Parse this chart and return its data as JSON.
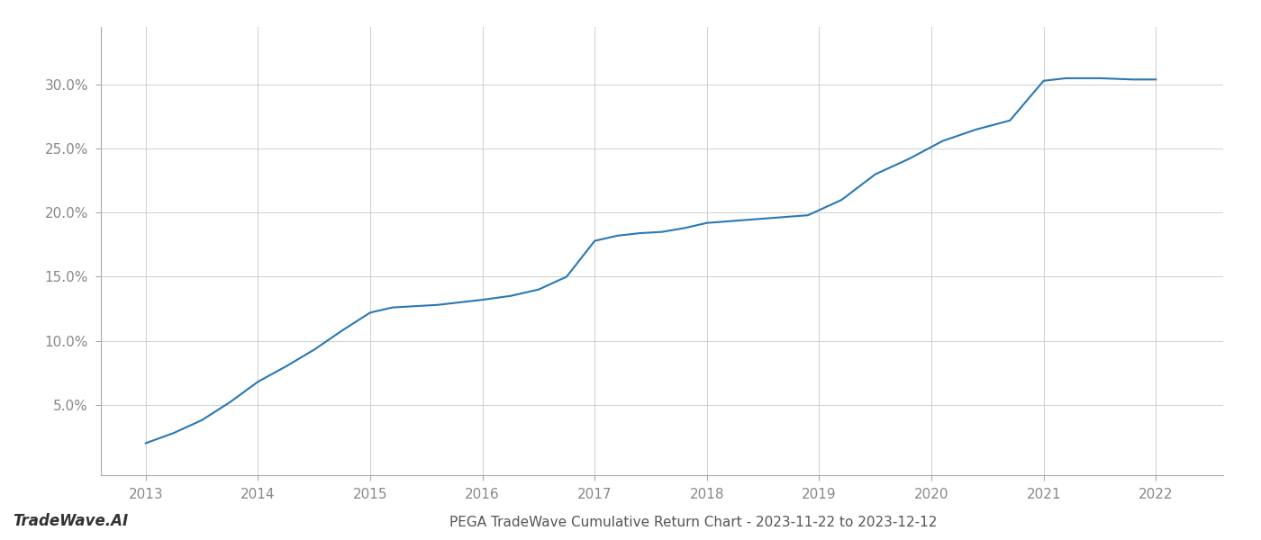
{
  "title": "PEGA TradeWave Cumulative Return Chart - 2023-11-22 to 2023-12-12",
  "watermark": "TradeWave.AI",
  "line_color": "#2878b5",
  "background_color": "#ffffff",
  "grid_color": "#d0d0d0",
  "x_values": [
    2013.0,
    2013.25,
    2013.5,
    2013.75,
    2014.0,
    2014.25,
    2014.5,
    2014.75,
    2015.0,
    2015.2,
    2015.4,
    2015.6,
    2015.8,
    2016.0,
    2016.25,
    2016.5,
    2016.75,
    2017.0,
    2017.2,
    2017.4,
    2017.6,
    2017.8,
    2018.0,
    2018.3,
    2018.6,
    2018.9,
    2019.2,
    2019.5,
    2019.8,
    2020.1,
    2020.4,
    2020.7,
    2021.0,
    2021.2,
    2021.5,
    2021.8,
    2022.0
  ],
  "y_values": [
    0.02,
    0.028,
    0.038,
    0.052,
    0.068,
    0.08,
    0.093,
    0.108,
    0.122,
    0.126,
    0.127,
    0.128,
    0.13,
    0.132,
    0.135,
    0.14,
    0.15,
    0.178,
    0.182,
    0.184,
    0.185,
    0.188,
    0.192,
    0.194,
    0.196,
    0.198,
    0.21,
    0.23,
    0.242,
    0.256,
    0.265,
    0.272,
    0.303,
    0.305,
    0.305,
    0.304,
    0.304
  ],
  "xlim": [
    2012.6,
    2022.6
  ],
  "ylim": [
    -0.005,
    0.345
  ],
  "yticks": [
    0.05,
    0.1,
    0.15,
    0.2,
    0.25,
    0.3
  ],
  "ytick_labels": [
    "5.0%",
    "10.0%",
    "15.0%",
    "20.0%",
    "25.0%",
    "30.0%"
  ],
  "xticks": [
    2013,
    2014,
    2015,
    2016,
    2017,
    2018,
    2019,
    2020,
    2021,
    2022
  ],
  "xtick_labels": [
    "2013",
    "2014",
    "2015",
    "2016",
    "2017",
    "2018",
    "2019",
    "2020",
    "2021",
    "2022"
  ],
  "line_width": 1.5,
  "title_fontsize": 11,
  "tick_fontsize": 11,
  "watermark_fontsize": 12
}
